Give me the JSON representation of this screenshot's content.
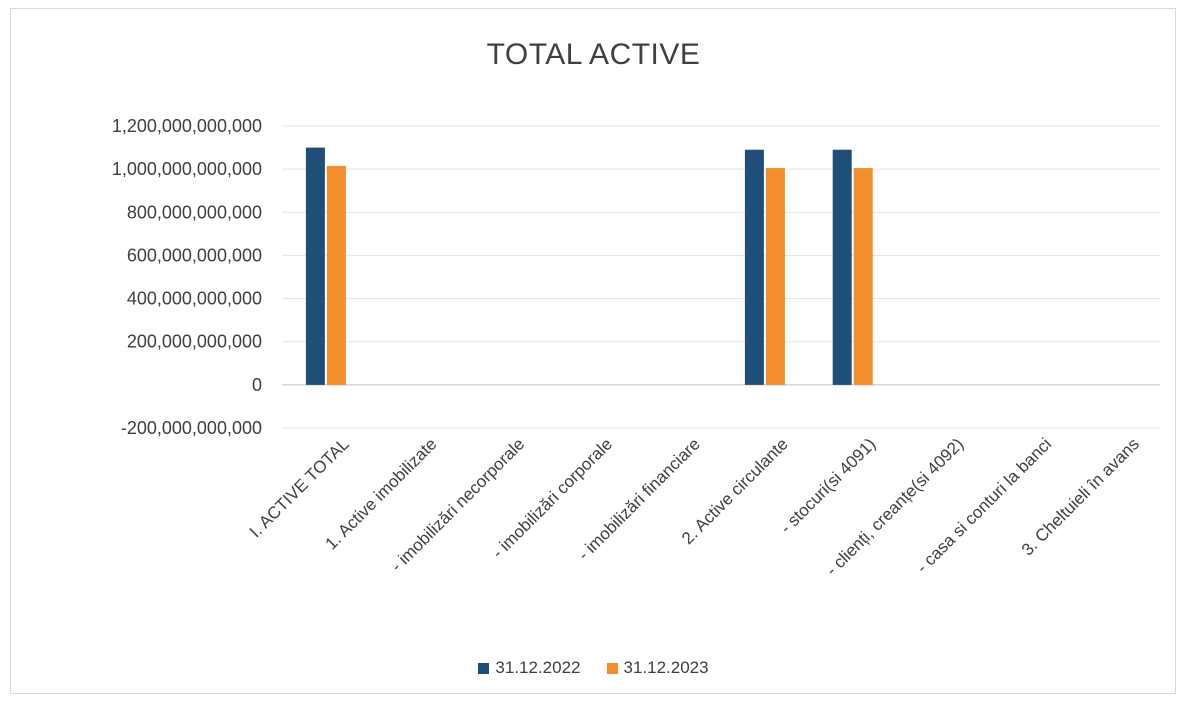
{
  "chart_data": {
    "type": "bar",
    "title": "TOTAL ACTIVE",
    "xlabel": "",
    "ylabel": "",
    "ylim": [
      -200000000000,
      1200000000000
    ],
    "yticks": [
      1200000000000,
      1000000000000,
      800000000000,
      600000000000,
      400000000000,
      200000000000,
      0,
      -200000000000
    ],
    "ytick_labels": [
      "1,200,000,000,000",
      "1,000,000,000,000",
      "800,000,000,000",
      "600,000,000,000",
      "400,000,000,000",
      "200,000,000,000",
      "0",
      "-200,000,000,000"
    ],
    "grid": true,
    "legend_position": "bottom",
    "categories": [
      "I. ACTIVE TOTAL",
      "1. Active imobilizate",
      "- imobilizări necorporale",
      "- imobilizări corporale",
      "- imobilizări financiare",
      "2. Active circulante",
      "- stocuri(si 4091)",
      "- clienți, creanțe(si 4092)",
      "- casa si conturi la banci",
      "3. Cheltuieli în avans"
    ],
    "series": [
      {
        "name": "31.12.2022",
        "color": "#1f4e79",
        "values": [
          1100000000000,
          0,
          0,
          0,
          0,
          1090000000000,
          1090000000000,
          0,
          0,
          0
        ]
      },
      {
        "name": "31.12.2023",
        "color": "#f28e2b",
        "values": [
          1015000000000,
          0,
          0,
          0,
          0,
          1005000000000,
          1005000000000,
          0,
          0,
          0
        ]
      }
    ]
  }
}
